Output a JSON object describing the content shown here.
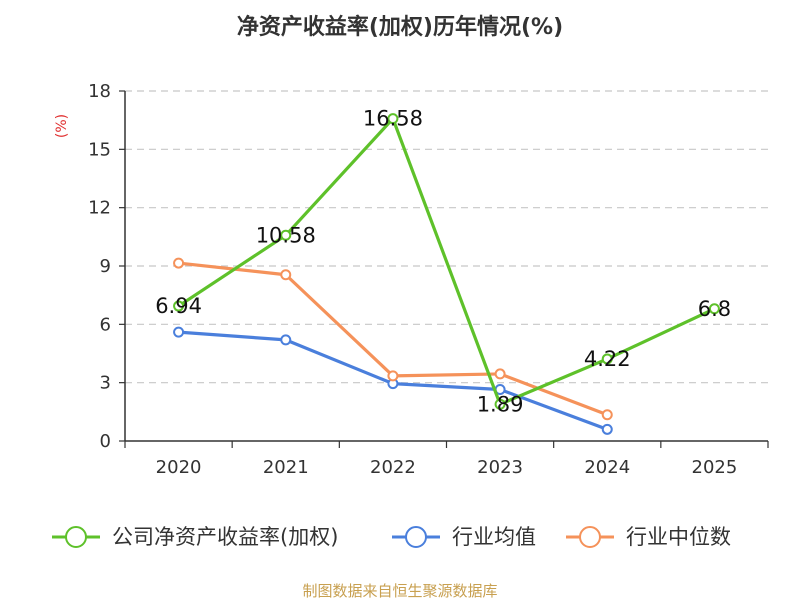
{
  "chart_data": {
    "type": "line",
    "title": "净资产收益率(加权)历年情况(%)",
    "ylabel": "(%)",
    "xlabel": "",
    "categories": [
      "2020",
      "2021",
      "2022",
      "2023",
      "2024",
      "2025"
    ],
    "ylim": [
      0,
      18
    ],
    "yticks": [
      0,
      3,
      6,
      9,
      12,
      15,
      18
    ],
    "grid": true,
    "legend_position": "bottom",
    "series": [
      {
        "name": "公司净资产收益率(加权)",
        "color": "#5ec12a",
        "values": [
          6.94,
          10.58,
          16.58,
          1.89,
          4.22,
          6.8
        ],
        "labels": [
          "6.94",
          "10.58",
          "16.58",
          "1.89",
          "4.22",
          "6.8"
        ]
      },
      {
        "name": "行业均值",
        "color": "#4a7fdc",
        "values": [
          5.6,
          5.2,
          2.95,
          2.65,
          0.6,
          null
        ]
      },
      {
        "name": "行业中位数",
        "color": "#f5925a",
        "values": [
          9.15,
          8.55,
          3.35,
          3.45,
          1.35,
          null
        ]
      }
    ],
    "source": "制图数据来自恒生聚源数据库"
  }
}
